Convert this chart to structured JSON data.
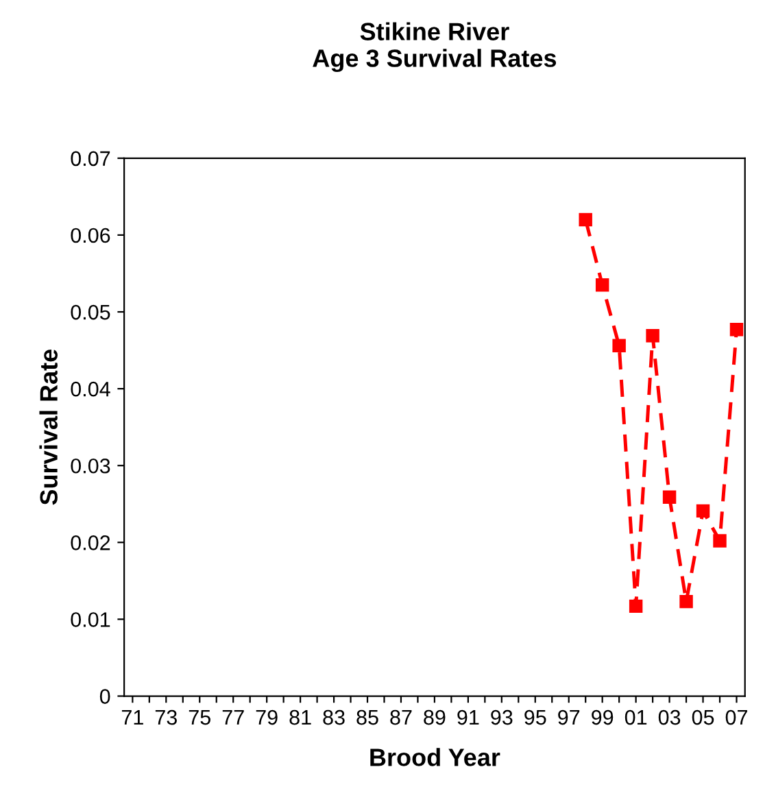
{
  "chart_data": {
    "type": "line",
    "title": "Stikine River\nAge 3 Survival Rates",
    "xlabel": "Brood Year",
    "ylabel": "Survival Rate",
    "categories": [
      "71",
      null,
      "73",
      null,
      "75",
      null,
      "77",
      null,
      "79",
      null,
      "81",
      null,
      "83",
      null,
      "85",
      null,
      "87",
      null,
      "89",
      null,
      "91",
      null,
      "93",
      null,
      "95",
      null,
      "97",
      null,
      "99",
      null,
      "01",
      null,
      "03",
      null,
      "05",
      null,
      "07"
    ],
    "series": [
      {
        "color": "#ff0000",
        "values": [
          null,
          null,
          null,
          null,
          null,
          null,
          null,
          null,
          null,
          null,
          null,
          null,
          null,
          null,
          null,
          null,
          null,
          null,
          null,
          null,
          null,
          null,
          null,
          null,
          null,
          null,
          null,
          0.062,
          0.0535,
          0.0456,
          0.0117,
          0.0469,
          0.0259,
          0.0123,
          0.0241,
          0.0202,
          0.0477
        ]
      }
    ],
    "ylim": [
      0,
      0.07
    ],
    "yticks": [
      {
        "value": 0,
        "label": "0"
      },
      0.01,
      0.02,
      0.03,
      0.04,
      0.05,
      0.06,
      0.07
    ],
    "marker": "square",
    "line_style": "dashed",
    "grid": false,
    "legend": false
  }
}
